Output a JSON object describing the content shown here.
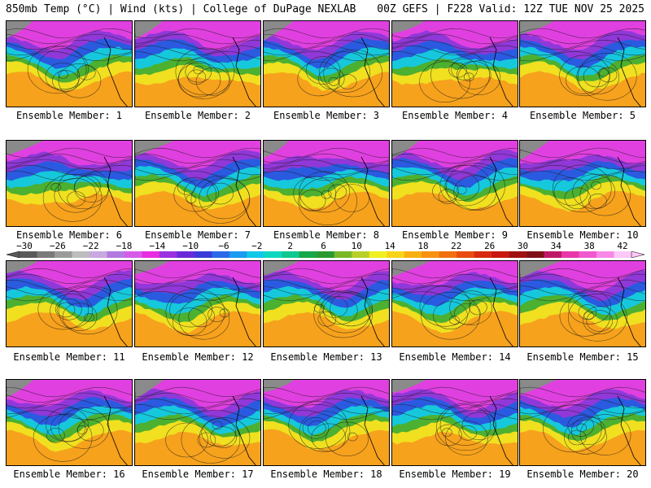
{
  "header": {
    "left": "850mb Temp (°C) | Wind (kts) | College of DuPage NEXLAB",
    "right": "00Z GEFS | F228 Valid: 12Z TUE NOV 25 2025"
  },
  "panels": [
    {
      "label": "Ensemble Member: 1"
    },
    {
      "label": "Ensemble Member: 2"
    },
    {
      "label": "Ensemble Member: 3"
    },
    {
      "label": "Ensemble Member: 4"
    },
    {
      "label": "Ensemble Member: 5"
    },
    {
      "label": "Ensemble Member: 6"
    },
    {
      "label": "Ensemble Member: 7"
    },
    {
      "label": "Ensemble Member: 8"
    },
    {
      "label": "Ensemble Member: 9"
    },
    {
      "label": "Ensemble Member: 10"
    },
    {
      "label": "Ensemble Member: 11"
    },
    {
      "label": "Ensemble Member: 12"
    },
    {
      "label": "Ensemble Member: 13"
    },
    {
      "label": "Ensemble Member: 14"
    },
    {
      "label": "Ensemble Member: 15"
    },
    {
      "label": "Ensemble Member: 16"
    },
    {
      "label": "Ensemble Member: 17"
    },
    {
      "label": "Ensemble Member: 18"
    },
    {
      "label": "Ensemble Member: 19"
    },
    {
      "label": "Ensemble Member: 20"
    }
  ],
  "colorbar": {
    "ticks": [
      "−30",
      "−26",
      "−22",
      "−18",
      "−14",
      "−10",
      "−6",
      "−2",
      "2",
      "6",
      "10",
      "14",
      "18",
      "22",
      "26",
      "30",
      "34",
      "38",
      "42"
    ],
    "colors": [
      "#5a5a5a",
      "#7a7a7a",
      "#9a9a9a",
      "#bdbdbd",
      "#c8a8e0",
      "#b27ae0",
      "#d65ce8",
      "#e82ee0",
      "#9a30e0",
      "#6a2ad8",
      "#3a3ad8",
      "#2a6ae8",
      "#1a9af0",
      "#10c8e8",
      "#10d8c0",
      "#10c890",
      "#18a848",
      "#2a9a30",
      "#7ab828",
      "#b8d028",
      "#f0f020",
      "#f8d418",
      "#f8b010",
      "#f89010",
      "#f07010",
      "#e84c10",
      "#d82a10",
      "#c81810",
      "#a01010",
      "#801018",
      "#c01868",
      "#e838a8",
      "#f058d0",
      "#f888e8",
      "#fcc8f8"
    ]
  },
  "palette": {
    "warm_orange": "#f7a21c",
    "yellow": "#f0e020",
    "green": "#4cb030",
    "cyan": "#16c8dc",
    "blue": "#2a5ae0",
    "purple": "#9038d8",
    "magenta": "#e040e0",
    "gray": "#8a8a8a"
  }
}
